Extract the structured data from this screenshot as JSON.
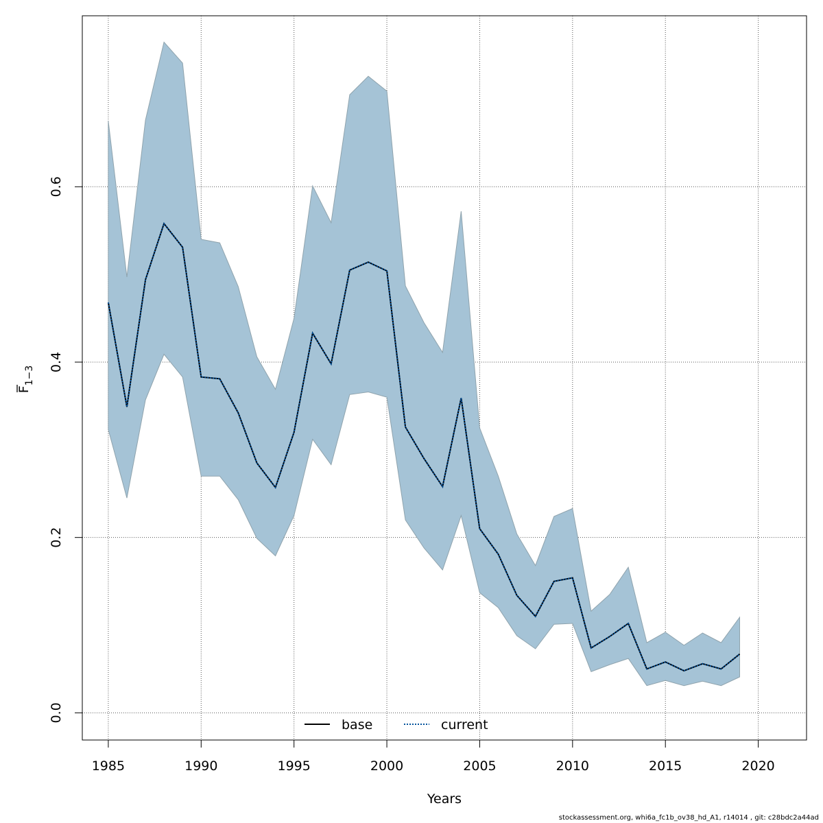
{
  "chart_data": {
    "type": "line",
    "title": "",
    "xlabel": "Years",
    "ylabel": "F̅ 1−3",
    "ylabel_parts": {
      "base": "F",
      "subscript": "1−3"
    },
    "xlim": [
      1983.6,
      2022.6
    ],
    "ylim": [
      -0.031,
      0.795
    ],
    "xticks": [
      1985,
      1990,
      1995,
      2000,
      2005,
      2010,
      2015,
      2020
    ],
    "yticks": [
      0.0,
      0.2,
      0.4,
      0.6
    ],
    "ytick_labels": [
      "0.0",
      "0.2",
      "0.4",
      "0.6"
    ],
    "grid": true,
    "legend_position": "bottom",
    "x": [
      1985,
      1986,
      1987,
      1988,
      1989,
      1990,
      1991,
      1992,
      1993,
      1994,
      1995,
      1996,
      1997,
      1998,
      1999,
      2000,
      2001,
      2002,
      2003,
      2004,
      2005,
      2006,
      2007,
      2008,
      2009,
      2010,
      2011,
      2012,
      2013,
      2014,
      2015,
      2016,
      2017,
      2018,
      2019
    ],
    "series": [
      {
        "name": "base",
        "style": "solid",
        "color": "#000000",
        "values": [
          0.468,
          0.349,
          0.494,
          0.558,
          0.531,
          0.383,
          0.381,
          0.342,
          0.285,
          0.257,
          0.32,
          0.433,
          0.398,
          0.505,
          0.514,
          0.504,
          0.326,
          0.29,
          0.258,
          0.359,
          0.21,
          0.181,
          0.134,
          0.11,
          0.15,
          0.154,
          0.074,
          0.087,
          0.102,
          0.05,
          0.058,
          0.048,
          0.056,
          0.05,
          0.067
        ]
      },
      {
        "name": "current",
        "style": "dotted",
        "color": "#00509b",
        "values": [
          0.468,
          0.349,
          0.494,
          0.558,
          0.531,
          0.383,
          0.381,
          0.342,
          0.285,
          0.257,
          0.32,
          0.433,
          0.398,
          0.505,
          0.514,
          0.504,
          0.326,
          0.29,
          0.258,
          0.359,
          0.21,
          0.181,
          0.134,
          0.11,
          0.15,
          0.154,
          0.074,
          0.087,
          0.102,
          0.05,
          0.058,
          0.048,
          0.056,
          0.05,
          0.067
        ]
      }
    ],
    "confidence_band": {
      "color": "#a5c3d6",
      "edge_color": "#8fa3ad",
      "upper": [
        0.675,
        0.497,
        0.676,
        0.765,
        0.741,
        0.54,
        0.536,
        0.486,
        0.406,
        0.369,
        0.45,
        0.601,
        0.559,
        0.705,
        0.726,
        0.709,
        0.487,
        0.445,
        0.411,
        0.572,
        0.325,
        0.27,
        0.204,
        0.168,
        0.224,
        0.233,
        0.116,
        0.135,
        0.166,
        0.08,
        0.092,
        0.077,
        0.091,
        0.08,
        0.109
      ],
      "lower": [
        0.323,
        0.245,
        0.357,
        0.409,
        0.383,
        0.27,
        0.27,
        0.243,
        0.199,
        0.179,
        0.225,
        0.312,
        0.283,
        0.363,
        0.366,
        0.36,
        0.22,
        0.188,
        0.163,
        0.225,
        0.137,
        0.12,
        0.088,
        0.073,
        0.101,
        0.102,
        0.047,
        0.055,
        0.062,
        0.031,
        0.037,
        0.031,
        0.036,
        0.031,
        0.041
      ]
    }
  },
  "footer": "stockassessment.org, whi6a_fc1b_ov38_hd_A1, r14014 , git: c28bdc2a44ad"
}
